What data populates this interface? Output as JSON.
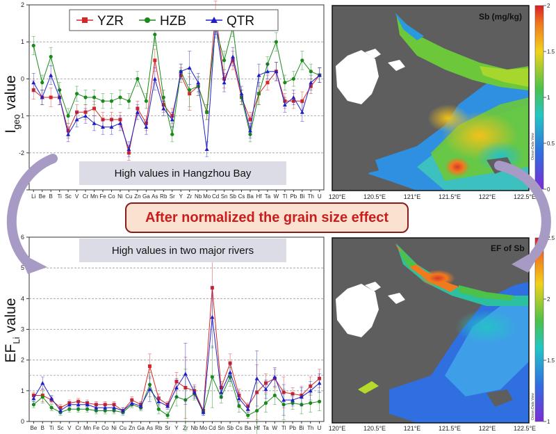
{
  "banner": "After normalized the grain size effect",
  "notes": {
    "top": "High values in Hangzhou Bay",
    "bottom": "High values in two major rivers"
  },
  "colors": {
    "YZR": "#d62728",
    "HZB": "#1a8a1a",
    "QTR": "#1f1fc8",
    "land": "#5e5e5e",
    "banner_bg": "#fbe2d0",
    "banner_text": "#c81e1e",
    "arrow": "#a79bc6"
  },
  "chart_data": [
    {
      "type": "line",
      "id": "igeo",
      "ylabel_main": "I",
      "ylabel_sub": "geo",
      "ylabel_rest": " value",
      "ylim": [
        -3,
        2
      ],
      "yticks": [
        "2",
        "1",
        "0",
        "-1",
        "-2",
        "-3"
      ],
      "ytick_values": [
        2,
        1,
        0,
        -1,
        -2,
        -3
      ],
      "gridlines": [
        1,
        0,
        -1,
        -2
      ],
      "categories": [
        "Li",
        "Be",
        "B",
        "Ti",
        "Sc",
        "V",
        "Cr",
        "Mn",
        "Fe",
        "Co",
        "Ni",
        "Cu",
        "Zn",
        "Ga",
        "As",
        "Rb",
        "Sr",
        "Y",
        "Zr",
        "Nb",
        "Mo",
        "Cd",
        "Sn",
        "Sb",
        "Cs",
        "Ba",
        "Hf",
        "Ta",
        "W",
        "Tl",
        "Pb",
        "Bi",
        "Th",
        "U"
      ],
      "legend": [
        "YZR",
        "HZB",
        "QTR"
      ],
      "series": [
        {
          "name": "YZR",
          "marker": "square",
          "values": [
            -0.3,
            -0.5,
            -0.5,
            -0.5,
            -1.4,
            -0.9,
            -0.9,
            -0.8,
            -1.1,
            -1.1,
            -1.1,
            -2.0,
            -0.8,
            -1.2,
            0.5,
            -0.7,
            -1.0,
            0.1,
            -0.4,
            -0.2,
            -0.9,
            1.8,
            0.0,
            0.5,
            -0.5,
            -1.1,
            -0.4,
            -0.1,
            0.2,
            -0.6,
            -0.6,
            -0.6,
            -0.2,
            0.1
          ]
        },
        {
          "name": "HZB",
          "marker": "circle",
          "values": [
            0.9,
            -0.1,
            0.6,
            -0.3,
            -1.0,
            -0.4,
            -0.5,
            -0.5,
            -0.6,
            -0.6,
            -0.5,
            -0.6,
            0.0,
            -0.6,
            1.2,
            -0.5,
            -1.5,
            0.2,
            -0.3,
            -0.2,
            -0.9,
            1.4,
            0.5,
            1.4,
            -0.5,
            -1.5,
            -0.4,
            0.4,
            1.0,
            -0.1,
            0.0,
            0.5,
            0.2,
            0.1
          ]
        },
        {
          "name": "QTR",
          "marker": "triangle",
          "values": [
            -0.1,
            -0.5,
            0.1,
            -0.5,
            -1.5,
            -1.1,
            -1.0,
            -1.2,
            -1.3,
            -1.3,
            -1.2,
            -1.9,
            -0.9,
            -1.3,
            0.0,
            -0.8,
            -1.1,
            0.2,
            0.3,
            -0.1,
            -1.9,
            1.5,
            -0.1,
            0.6,
            -0.4,
            -1.4,
            0.1,
            0.2,
            0.2,
            -0.7,
            -0.5,
            -0.9,
            -0.1,
            0.1
          ]
        }
      ],
      "error": [
        0.25,
        0.2,
        0.25,
        0.2,
        0.2,
        0.2,
        0.2,
        0.2,
        0.2,
        0.2,
        0.2,
        0.2,
        0.2,
        0.2,
        0.3,
        0.2,
        0.2,
        0.2,
        0.45,
        0.25,
        0.2,
        0.3,
        0.25,
        0.25,
        0.2,
        0.2,
        0.3,
        0.2,
        0.25,
        0.2,
        0.2,
        0.25,
        0.2,
        0.2
      ]
    },
    {
      "type": "line",
      "id": "ef",
      "ylabel_main": "EF",
      "ylabel_sub": "Li",
      "ylabel_rest": " value",
      "ylim": [
        0,
        6
      ],
      "yticks": [
        "6",
        "5",
        "4",
        "3",
        "2",
        "1",
        "0"
      ],
      "ytick_values": [
        6,
        5,
        4,
        3,
        2,
        1,
        0
      ],
      "gridlines": [
        5,
        4,
        3,
        2,
        1.5,
        1
      ],
      "categories": [
        "Be",
        "B",
        "Ti",
        "Sc",
        "V",
        "Cr",
        "Mn",
        "Fe",
        "Co",
        "Ni",
        "Cu",
        "Zn",
        "Ga",
        "As",
        "Rb",
        "Sr",
        "Y",
        "Zr",
        "Nb",
        "Mo",
        "Cd",
        "Sn",
        "Sb",
        "Cs",
        "Ba",
        "Hf",
        "Ta",
        "W",
        "Tl",
        "Pb",
        "Bi",
        "Th",
        "U"
      ],
      "series": [
        {
          "name": "YZR",
          "marker": "square",
          "values": [
            0.85,
            0.85,
            0.7,
            0.45,
            0.6,
            0.65,
            0.6,
            0.55,
            0.55,
            0.55,
            0.35,
            0.7,
            0.55,
            1.8,
            0.75,
            0.55,
            1.3,
            1.1,
            1.0,
            0.35,
            4.35,
            1.1,
            1.9,
            0.85,
            0.5,
            0.95,
            1.25,
            1.4,
            0.95,
            0.9,
            0.85,
            1.15,
            1.4
          ]
        },
        {
          "name": "HZB",
          "marker": "circle",
          "values": [
            0.55,
            0.8,
            0.45,
            0.3,
            0.4,
            0.4,
            0.4,
            0.35,
            0.35,
            0.35,
            0.3,
            0.55,
            0.45,
            1.2,
            0.4,
            0.2,
            0.8,
            0.7,
            0.9,
            0.3,
            1.45,
            0.8,
            1.45,
            0.5,
            0.2,
            0.35,
            0.6,
            0.85,
            0.55,
            0.6,
            0.55,
            0.6,
            0.65
          ]
        },
        {
          "name": "QTR",
          "marker": "triangle",
          "values": [
            0.75,
            1.25,
            0.75,
            0.35,
            0.55,
            0.55,
            0.55,
            0.45,
            0.45,
            0.45,
            0.35,
            0.6,
            0.5,
            1.05,
            0.65,
            0.5,
            1.1,
            1.55,
            0.95,
            0.3,
            3.4,
            0.95,
            1.6,
            0.75,
            0.4,
            1.4,
            1.05,
            1.45,
            0.7,
            0.7,
            0.8,
            1.0,
            1.25
          ]
        }
      ],
      "error": [
        0.1,
        0.2,
        0.1,
        0.1,
        0.1,
        0.1,
        0.1,
        0.1,
        0.1,
        0.1,
        0.1,
        0.1,
        0.1,
        0.4,
        0.15,
        0.1,
        0.3,
        1.0,
        0.2,
        0.1,
        1.0,
        0.2,
        0.3,
        0.2,
        0.1,
        0.9,
        0.3,
        0.3,
        0.5,
        0.2,
        0.3,
        0.3,
        0.3
      ]
    },
    {
      "type": "heatmap",
      "id": "map_sb",
      "title": "Sb (mg/kg)",
      "colorbar_ticks": [
        "2",
        "1.5",
        "1",
        "0.5",
        "0"
      ],
      "colorbar_values": [
        2,
        1.5,
        1,
        0.5,
        0
      ],
      "colorbar_range": [
        0,
        2
      ],
      "xticks": [
        "120°E",
        "120.5°E",
        "121°E",
        "121.5°E",
        "122°E",
        "122.5°E"
      ],
      "watermark": "Ocean Data View"
    },
    {
      "type": "heatmap",
      "id": "map_ef",
      "title": "EF of Sb",
      "colorbar_ticks": [
        "2.5",
        "2",
        "1.5",
        "1"
      ],
      "colorbar_values": [
        2.5,
        2,
        1.5,
        1
      ],
      "colorbar_range": [
        1,
        2.5
      ],
      "xticks": [
        "120°E",
        "120.5°E",
        "121°E",
        "121.5°E",
        "122°E",
        "122.5°E"
      ],
      "watermark": "Ocean Data View"
    }
  ]
}
